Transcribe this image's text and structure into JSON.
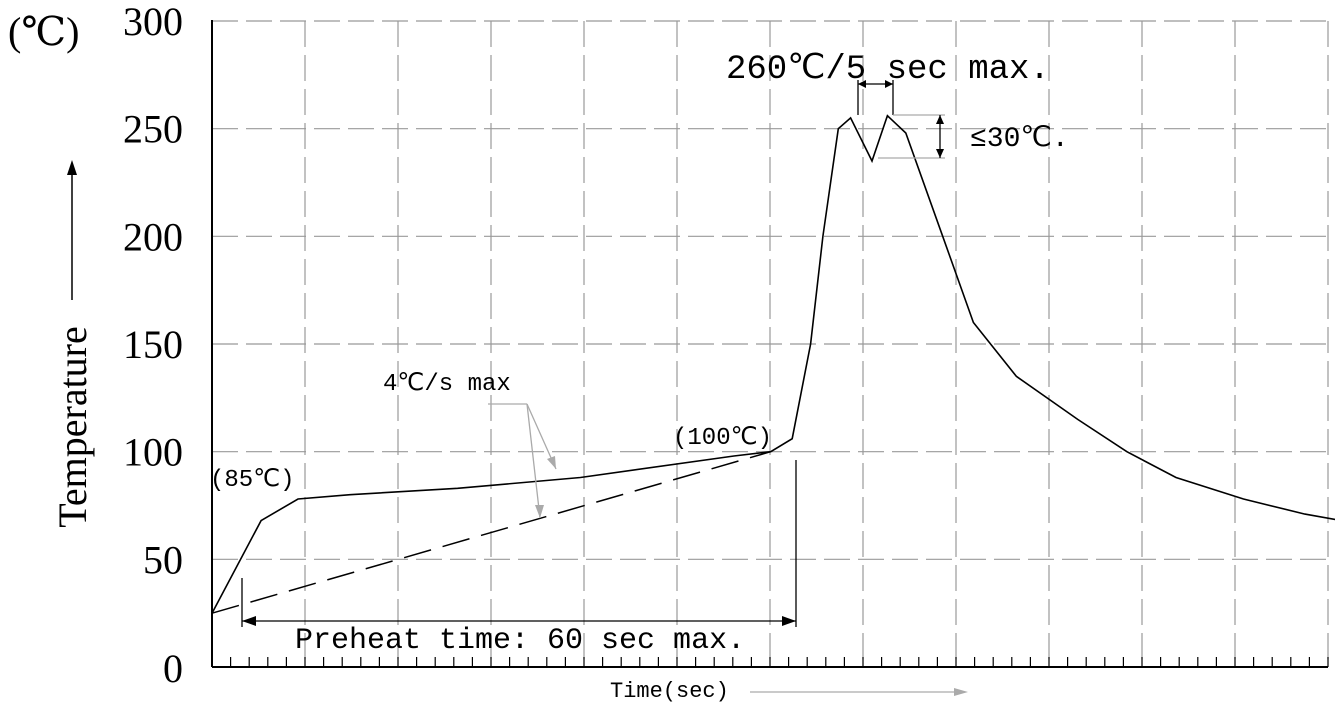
{
  "chart_data": {
    "type": "line",
    "title": "",
    "unit_label": "(℃)",
    "ylabel": "Temperature",
    "xlabel": "Time(sec)",
    "ylim": [
      0,
      300
    ],
    "yticks": [
      "0",
      "50",
      "100",
      "150",
      "200",
      "250",
      "300"
    ],
    "grid": true,
    "series": [
      {
        "style": "solid",
        "x": [
          0,
          16,
          28,
          45,
          80,
          120,
          170,
          182,
          189,
          195,
          199,
          204,
          208,
          215,
          220,
          226,
          238,
          248,
          262,
          282,
          298,
          314,
          336,
          356,
          376,
          400
        ],
        "y": [
          25,
          68,
          78,
          80,
          83,
          88,
          98,
          100,
          106,
          150,
          200,
          250,
          255,
          235,
          256,
          248,
          200,
          160,
          135,
          115,
          100,
          88,
          78,
          71,
          66,
          61
        ]
      },
      {
        "style": "dashed",
        "x": [
          0,
          182
        ],
        "y": [
          25,
          100
        ]
      }
    ],
    "annotations": {
      "peak": "260℃/5 sec max.",
      "delta": "≤30℃.",
      "ramp": "4℃/s max",
      "start_temp": "(85℃)",
      "preheat_end_temp": "(100℃)",
      "preheat": "Preheat time: 60 sec max."
    }
  }
}
